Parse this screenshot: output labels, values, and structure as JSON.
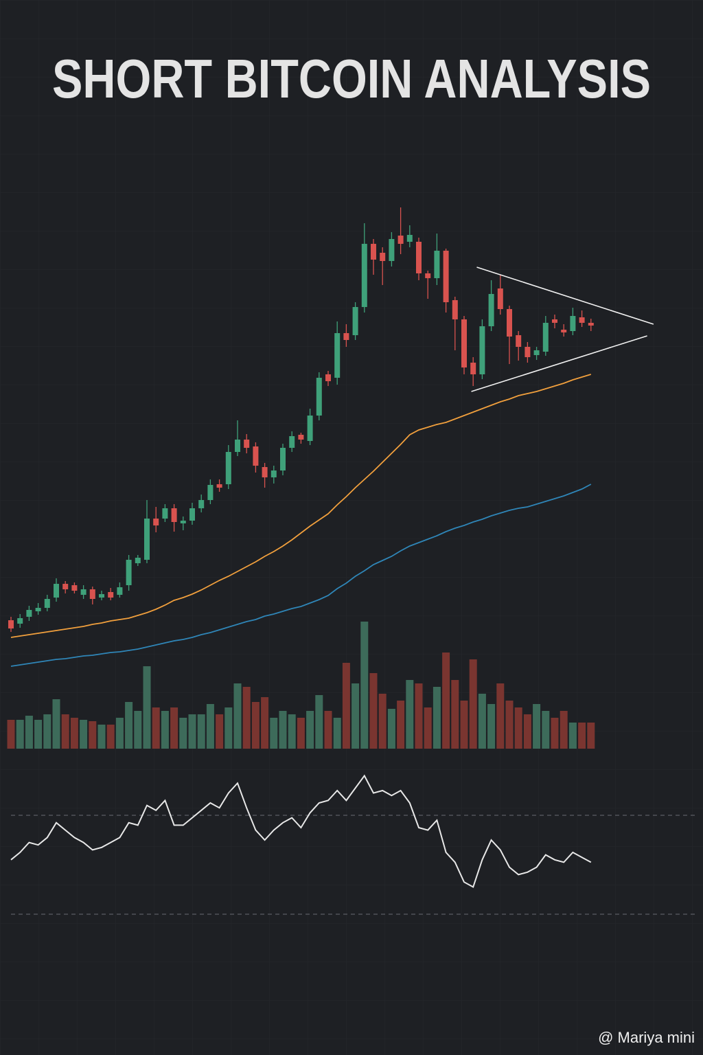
{
  "chart_data": {
    "type": "candlestick",
    "title": "SHORT BITCOIN ANALYSIS",
    "watermark": "@ Mariya mini",
    "up_color": "#3fa17a",
    "down_color": "#d9534f",
    "ylim": [
      -20,
      690
    ],
    "open": [
      57,
      52,
      62,
      70,
      75,
      90,
      110,
      108,
      94,
      102,
      90,
      98,
      94,
      108,
      140,
      145,
      205,
      205,
      220,
      198,
      202,
      220,
      232,
      255,
      255,
      302,
      320,
      310,
      280,
      265,
      275,
      308,
      327,
      318,
      355,
      415,
      410,
      475,
      472,
      513,
      605,
      592,
      580,
      617,
      608,
      608,
      562,
      555,
      595,
      523,
      495,
      432,
      415,
      485,
      540,
      510,
      472,
      455,
      443,
      448,
      495,
      480,
      478,
      498,
      490
    ],
    "high": [
      62,
      66,
      78,
      82,
      94,
      118,
      114,
      112,
      108,
      106,
      100,
      104,
      112,
      152,
      152,
      232,
      222,
      226,
      226,
      208,
      228,
      240,
      262,
      262,
      312,
      348,
      328,
      316,
      286,
      282,
      314,
      332,
      330,
      365,
      418,
      420,
      492,
      488,
      520,
      635,
      612,
      600,
      622,
      658,
      632,
      614,
      566,
      620,
      598,
      528,
      500,
      440,
      495,
      552,
      560,
      515,
      478,
      462,
      455,
      500,
      502,
      488,
      512,
      508,
      496
    ],
    "low": [
      40,
      46,
      56,
      65,
      70,
      84,
      96,
      96,
      88,
      80,
      86,
      86,
      90,
      100,
      136,
      140,
      185,
      200,
      186,
      188,
      196,
      214,
      226,
      244,
      248,
      296,
      300,
      272,
      250,
      256,
      268,
      302,
      314,
      312,
      348,
      398,
      400,
      455,
      465,
      505,
      560,
      545,
      572,
      590,
      600,
      552,
      525,
      545,
      505,
      450,
      415,
      398,
      408,
      478,
      502,
      430,
      435,
      432,
      436,
      442,
      482,
      470,
      472,
      484,
      478
    ],
    "close": [
      45,
      60,
      72,
      75,
      88,
      110,
      102,
      100,
      102,
      88,
      95,
      90,
      105,
      145,
      148,
      205,
      195,
      220,
      200,
      202,
      220,
      232,
      254,
      250,
      302,
      320,
      308,
      282,
      265,
      275,
      308,
      325,
      320,
      355,
      410,
      405,
      475,
      465,
      513,
      605,
      582,
      580,
      612,
      605,
      618,
      562,
      555,
      595,
      520,
      495,
      425,
      415,
      485,
      532,
      510,
      470,
      455,
      440,
      450,
      490,
      490,
      476,
      500,
      490,
      486
    ],
    "series": [
      {
        "name": null,
        "color": "#f2a03d",
        "values": [
          32,
          34,
          36,
          38,
          40,
          42,
          44,
          46,
          48,
          51,
          53,
          56,
          58,
          60,
          64,
          68,
          73,
          79,
          86,
          90,
          95,
          101,
          108,
          115,
          121,
          128,
          135,
          142,
          150,
          157,
          165,
          174,
          184,
          194,
          203,
          212,
          225,
          237,
          250,
          262,
          274,
          287,
          300,
          313,
          327,
          334,
          338,
          342,
          345,
          350,
          355,
          360,
          365,
          370,
          375,
          379,
          384,
          387,
          390,
          394,
          398,
          402,
          407,
          411,
          415
        ]
      },
      {
        "name": null,
        "color": "#2f86b8",
        "values": [
          -10,
          -8,
          -6,
          -4,
          -2,
          0,
          1,
          3,
          5,
          6,
          8,
          10,
          11,
          13,
          15,
          18,
          21,
          24,
          27,
          29,
          32,
          36,
          39,
          43,
          47,
          51,
          55,
          58,
          63,
          66,
          70,
          74,
          77,
          82,
          87,
          93,
          103,
          111,
          121,
          129,
          138,
          144,
          150,
          158,
          165,
          170,
          175,
          180,
          186,
          191,
          195,
          200,
          204,
          209,
          213,
          217,
          220,
          222,
          226,
          230,
          234,
          238,
          243,
          248,
          255
        ]
      }
    ],
    "trendlines": [
      {
        "color": "#f2f2f2",
        "x": [
          51.4,
          70.9
        ],
        "y": [
          571,
          488
        ]
      },
      {
        "color": "#f2f2f2",
        "x": [
          50.8,
          70.2
        ],
        "y": [
          390,
          471
        ]
      }
    ],
    "volume": {
      "ylim": [
        0,
        200
      ],
      "up_color": "#3d6b5a",
      "down_color": "#7a3530",
      "values": [
        42,
        42,
        48,
        42,
        50,
        72,
        50,
        45,
        42,
        40,
        35,
        35,
        45,
        68,
        55,
        120,
        60,
        55,
        60,
        45,
        50,
        50,
        65,
        50,
        60,
        95,
        90,
        68,
        75,
        45,
        55,
        50,
        45,
        55,
        78,
        55,
        45,
        125,
        95,
        185,
        110,
        80,
        58,
        70,
        100,
        95,
        60,
        90,
        140,
        100,
        70,
        130,
        80,
        65,
        95,
        70,
        60,
        50,
        65,
        55,
        45,
        55,
        38,
        38,
        38
      ]
    },
    "rsi": {
      "ylim": [
        0,
        100
      ],
      "levels": [
        70,
        30
      ],
      "color": "#e8e8e8",
      "values": [
        52,
        55,
        59,
        58,
        61,
        67,
        64,
        61,
        59,
        56,
        57,
        59,
        61,
        67,
        66,
        74,
        72,
        76,
        66,
        66,
        69,
        72,
        75,
        73,
        79,
        83,
        73,
        64,
        60,
        64,
        67,
        69,
        65,
        71,
        75,
        76,
        80,
        76,
        81,
        86,
        79,
        80,
        78,
        80,
        75,
        65,
        64,
        68,
        55,
        51,
        43,
        41,
        52,
        60,
        56,
        49,
        46,
        47,
        49,
        54,
        52,
        51,
        55,
        53,
        51
      ]
    }
  }
}
